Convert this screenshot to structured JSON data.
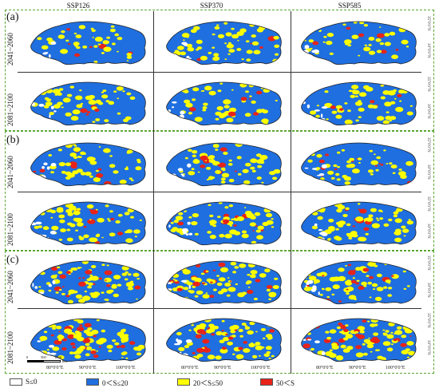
{
  "columns": [
    "SSP126",
    "SSP370",
    "SSP585"
  ],
  "panels": [
    "(a)",
    "(b)",
    "(c)"
  ],
  "periods": [
    "2041~2060",
    "2081~2100"
  ],
  "lon_ticks": [
    "80°0'0\"E",
    "90°0'0\"E",
    "100°0'0\"E"
  ],
  "lat_ticks": [
    "30°0'0\"N",
    "35°0'0\"N"
  ],
  "scale_bar": {
    "labels": [
      "0",
      "500",
      "1000"
    ],
    "unit": "km"
  },
  "colors": {
    "nodata": "#ffffff",
    "low": "#1f6fe0",
    "mid": "#ffff00",
    "high": "#e8231a",
    "outline": "#222222",
    "frame": "#5aa832"
  },
  "legend": [
    {
      "label": "S≤0",
      "color": "#ffffff"
    },
    {
      "label": "0＜S≤20",
      "color": "#1f6fe0"
    },
    {
      "label": "20＜S≤50",
      "color": "#ffff00"
    },
    {
      "label": "50＜S",
      "color": "#e8231a"
    }
  ]
}
